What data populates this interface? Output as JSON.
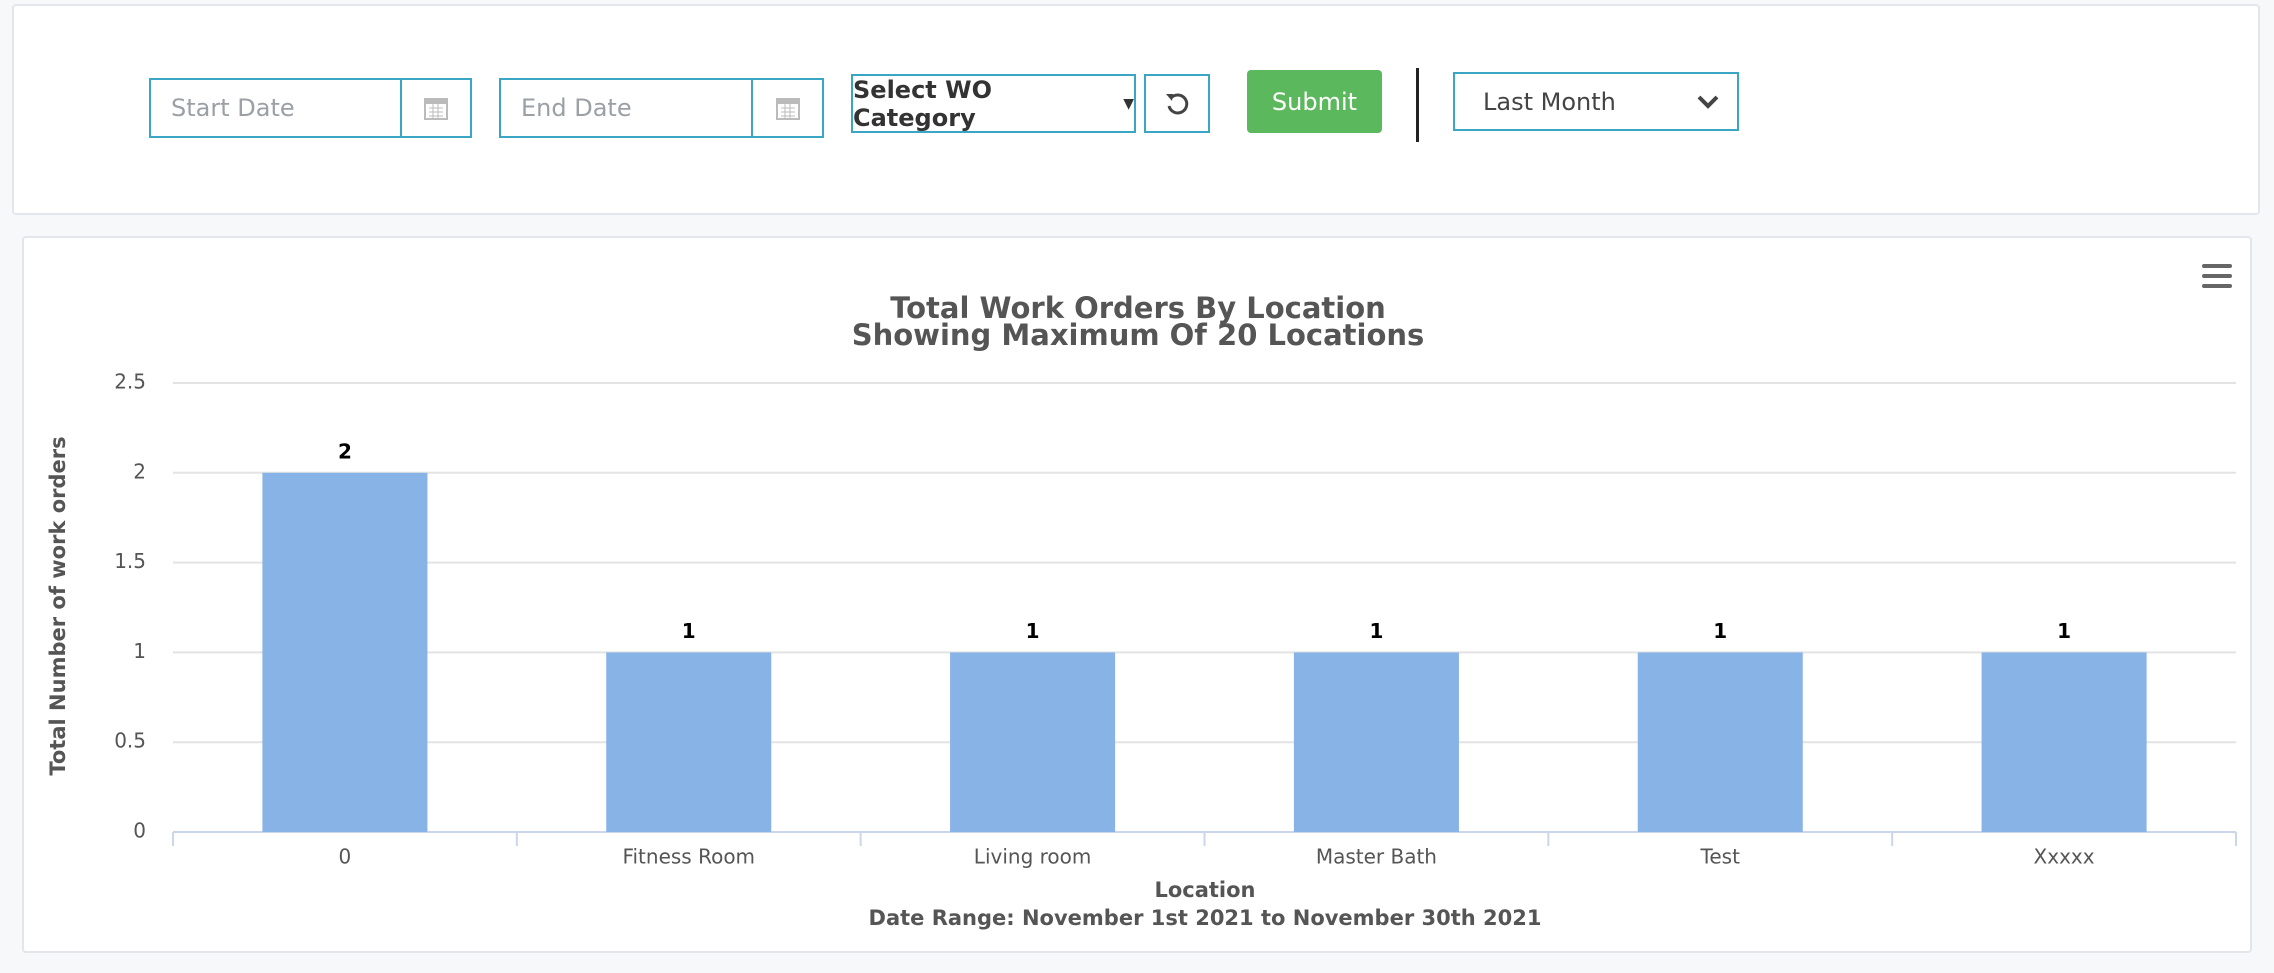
{
  "controls": {
    "start_date_placeholder": "Start Date",
    "end_date_placeholder": "End Date",
    "category_button": "Select WO Category",
    "submit": "Submit",
    "range_select": "Last Month"
  },
  "chart_data": {
    "type": "bar",
    "title": "Total Work Orders By Location",
    "subtitle": "Showing Maximum Of 20 Locations",
    "categories": [
      "0",
      "Fitness Room",
      "Living room",
      "Master Bath",
      "Test",
      "Xxxxx"
    ],
    "values": [
      2,
      1,
      1,
      1,
      1,
      1
    ],
    "color": "#88b3e6",
    "ylim": [
      0,
      2.5
    ],
    "yticks": [
      0,
      0.5,
      1,
      1.5,
      2,
      2.5
    ],
    "grid": true,
    "x_label": "Location",
    "x_sublabel": "Date Range: November 1st 2021 to November 30th 2021",
    "y_label": "Total Number of work orders"
  }
}
